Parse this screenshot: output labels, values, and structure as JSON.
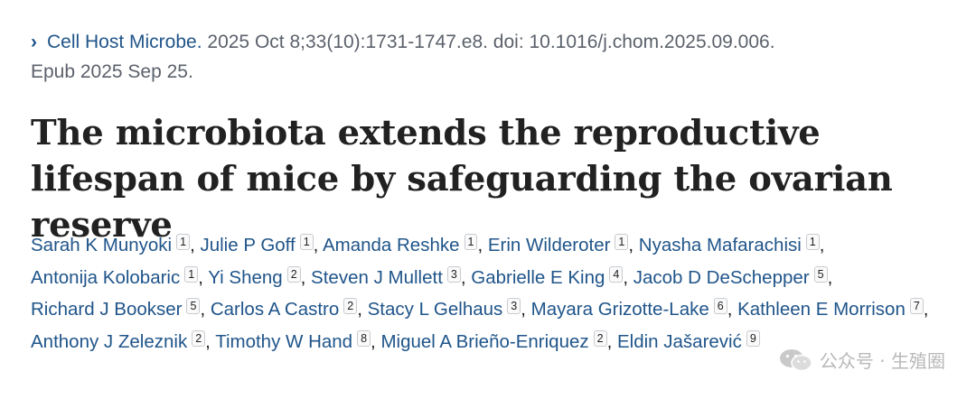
{
  "citation": {
    "chevron_glyph": "›",
    "journal": "Cell Host Microbe.",
    "details": " 2025 Oct 8;33(10):1731-1747.e8. doi: 10.1016/j.chom.2025.09.006.",
    "epub": "Epub 2025 Sep 25."
  },
  "title": "The microbiota extends the reproductive lifespan of mice by safeguarding the ovarian reserve",
  "authors": [
    {
      "name": "Sarah K Munyoki",
      "aff": "1"
    },
    {
      "name": "Julie P Goff",
      "aff": "1"
    },
    {
      "name": "Amanda Reshke",
      "aff": "1"
    },
    {
      "name": "Erin Wilderoter",
      "aff": "1"
    },
    {
      "name": "Nyasha Mafarachisi",
      "aff": "1"
    },
    {
      "name": "Antonija Kolobaric",
      "aff": "1"
    },
    {
      "name": "Yi Sheng",
      "aff": "2"
    },
    {
      "name": "Steven J Mullett",
      "aff": "3"
    },
    {
      "name": "Gabrielle E King",
      "aff": "4"
    },
    {
      "name": "Jacob D DeSchepper",
      "aff": "5"
    },
    {
      "name": "Richard J Bookser",
      "aff": "5"
    },
    {
      "name": "Carlos A Castro",
      "aff": "2"
    },
    {
      "name": "Stacy L Gelhaus",
      "aff": "3"
    },
    {
      "name": "Mayara Grizotte-Lake",
      "aff": "6"
    },
    {
      "name": "Kathleen E Morrison",
      "aff": "7"
    },
    {
      "name": "Anthony J Zeleznik",
      "aff": "2"
    },
    {
      "name": "Timothy W Hand",
      "aff": "8"
    },
    {
      "name": "Miguel A Brieño-Enriquez",
      "aff": "2"
    },
    {
      "name": "Eldin Jašarević",
      "aff": "9"
    }
  ],
  "author_separator": ",",
  "watermark": {
    "icon": "wechat-icon",
    "text": "公众号 · 生殖圈"
  },
  "colors": {
    "link": "#20558a",
    "text": "#212121",
    "meta": "#5b616b",
    "watermark": "#b8b8b8"
  }
}
